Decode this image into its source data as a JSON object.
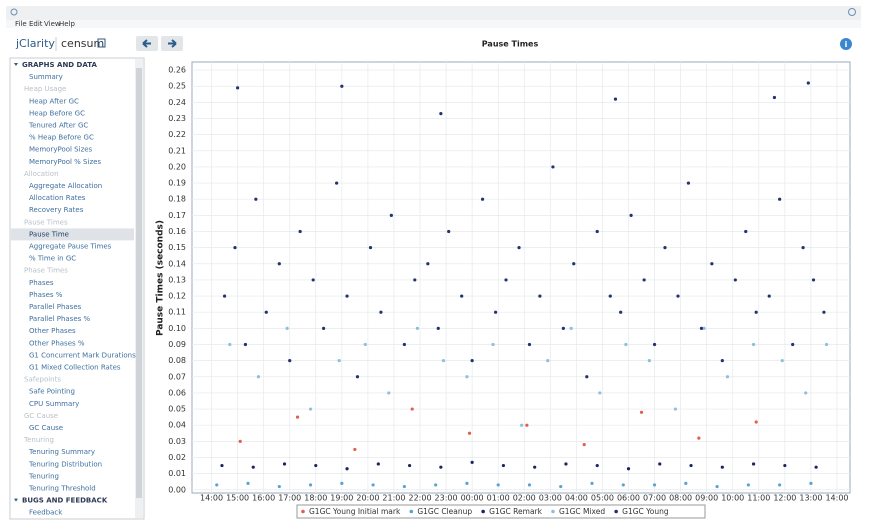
{
  "menu": [
    "File",
    "Edit",
    "View",
    "Help"
  ],
  "app": {
    "brand": "jClarity",
    "product": "censum"
  },
  "sidebar": [
    {
      "text": "GRAPHS AND DATA",
      "kind": "section"
    },
    {
      "text": "Summary",
      "kind": "item"
    },
    {
      "text": "Heap Usage",
      "kind": "header"
    },
    {
      "text": "Heap After GC",
      "kind": "item"
    },
    {
      "text": "Heap Before GC",
      "kind": "item"
    },
    {
      "text": "Tenured After GC",
      "kind": "item"
    },
    {
      "text": "% Heap Before GC",
      "kind": "item"
    },
    {
      "text": "MemoryPool Sizes",
      "kind": "item"
    },
    {
      "text": "MemoryPool % Sizes",
      "kind": "item"
    },
    {
      "text": "Allocation",
      "kind": "header"
    },
    {
      "text": "Aggregate Allocation",
      "kind": "item"
    },
    {
      "text": "Allocation Rates",
      "kind": "item"
    },
    {
      "text": "Recovery Rates",
      "kind": "item"
    },
    {
      "text": "Pause Times",
      "kind": "header"
    },
    {
      "text": "Pause Time",
      "kind": "selected"
    },
    {
      "text": "Aggregate Pause Times",
      "kind": "item"
    },
    {
      "text": "% Time in GC",
      "kind": "item"
    },
    {
      "text": "Phase Times",
      "kind": "header"
    },
    {
      "text": "Phases",
      "kind": "item"
    },
    {
      "text": "Phases %",
      "kind": "item"
    },
    {
      "text": "Parallel Phases",
      "kind": "item"
    },
    {
      "text": "Parallel Phases %",
      "kind": "item"
    },
    {
      "text": "Other Phases",
      "kind": "item"
    },
    {
      "text": "Other Phases %",
      "kind": "item"
    },
    {
      "text": "G1 Concurrent Mark Durations",
      "kind": "item"
    },
    {
      "text": "G1 Mixed Collection Rates",
      "kind": "item"
    },
    {
      "text": "Safepoints",
      "kind": "header"
    },
    {
      "text": "Safe Pointing",
      "kind": "item"
    },
    {
      "text": "CPU Summary",
      "kind": "item"
    },
    {
      "text": "GC Cause",
      "kind": "header"
    },
    {
      "text": "GC Cause",
      "kind": "item"
    },
    {
      "text": "Tenuring",
      "kind": "header"
    },
    {
      "text": "Tenuring Summary",
      "kind": "item"
    },
    {
      "text": "Tenuring Distribution",
      "kind": "item"
    },
    {
      "text": "Tenuring",
      "kind": "item"
    },
    {
      "text": "Tenuring Threshold",
      "kind": "item"
    },
    {
      "text": "BUGS AND FEEDBACK",
      "kind": "section"
    },
    {
      "text": "Feedback",
      "kind": "item"
    }
  ],
  "chart_data": {
    "type": "scatter",
    "title": "Pause Times",
    "y_label": "Pause Times (seconds)",
    "grid": true,
    "xlim": [
      -0.75,
      24.5
    ],
    "ylim": [
      -0.002,
      0.265
    ],
    "xticks": [
      {
        "value": 0,
        "label": "14:00"
      },
      {
        "value": 1,
        "label": "15:00"
      },
      {
        "value": 2,
        "label": "16:00"
      },
      {
        "value": 3,
        "label": "17:00"
      },
      {
        "value": 4,
        "label": "18:00"
      },
      {
        "value": 5,
        "label": "19:00"
      },
      {
        "value": 6,
        "label": "20:00"
      },
      {
        "value": 7,
        "label": "21:00"
      },
      {
        "value": 8,
        "label": "22:00"
      },
      {
        "value": 9,
        "label": "23:00"
      },
      {
        "value": 10,
        "label": "00:00"
      },
      {
        "value": 11,
        "label": "01:00"
      },
      {
        "value": 12,
        "label": "02:00"
      },
      {
        "value": 13,
        "label": "03:00"
      },
      {
        "value": 14,
        "label": "04:00"
      },
      {
        "value": 15,
        "label": "05:00"
      },
      {
        "value": 16,
        "label": "06:00"
      },
      {
        "value": 17,
        "label": "07:00"
      },
      {
        "value": 18,
        "label": "08:00"
      },
      {
        "value": 19,
        "label": "09:00"
      },
      {
        "value": 20,
        "label": "10:00"
      },
      {
        "value": 21,
        "label": "11:00"
      },
      {
        "value": 22,
        "label": "12:00"
      },
      {
        "value": 23,
        "label": "13:00"
      },
      {
        "value": 24,
        "label": "14:00"
      }
    ],
    "yticks": [
      {
        "value": 0,
        "label": "0.00"
      },
      {
        "value": 0.01,
        "label": "0.01"
      },
      {
        "value": 0.02,
        "label": "0.02"
      },
      {
        "value": 0.03,
        "label": "0.03"
      },
      {
        "value": 0.04,
        "label": "0.04"
      },
      {
        "value": 0.05,
        "label": "0.05"
      },
      {
        "value": 0.06,
        "label": "0.06"
      },
      {
        "value": 0.07,
        "label": "0.07"
      },
      {
        "value": 0.08,
        "label": "0.08"
      },
      {
        "value": 0.09,
        "label": "0.09"
      },
      {
        "value": 0.1,
        "label": "0.10"
      },
      {
        "value": 0.11,
        "label": "0.11"
      },
      {
        "value": 0.12,
        "label": "0.12"
      },
      {
        "value": 0.13,
        "label": "0.13"
      },
      {
        "value": 0.14,
        "label": "0.14"
      },
      {
        "value": 0.15,
        "label": "0.15"
      },
      {
        "value": 0.16,
        "label": "0.16"
      },
      {
        "value": 0.17,
        "label": "0.17"
      },
      {
        "value": 0.18,
        "label": "0.18"
      },
      {
        "value": 0.19,
        "label": "0.19"
      },
      {
        "value": 0.2,
        "label": "0.20"
      },
      {
        "value": 0.21,
        "label": "0.21"
      },
      {
        "value": 0.22,
        "label": "0.22"
      },
      {
        "value": 0.23,
        "label": "0.23"
      },
      {
        "value": 0.24,
        "label": "0.24"
      },
      {
        "value": 0.25,
        "label": "0.25"
      },
      {
        "value": 0.26,
        "label": "0.26"
      }
    ],
    "series": [
      {
        "name": "G1GC Young Initial mark",
        "color": "#e0604a",
        "x": [
          1.1,
          3.3,
          5.5,
          7.7,
          9.9,
          12.1,
          14.3,
          16.5,
          18.7,
          20.9
        ],
        "values": [
          0.03,
          0.045,
          0.025,
          0.05,
          0.035,
          0.04,
          0.028,
          0.048,
          0.032,
          0.042
        ]
      },
      {
        "name": "G1GC Cleanup",
        "color": "#5aa3d0",
        "x": [
          0.2,
          1.4,
          2.6,
          3.8,
          5.0,
          6.2,
          7.4,
          8.6,
          9.8,
          11.0,
          12.2,
          13.4,
          14.6,
          15.8,
          17.0,
          18.2,
          19.4,
          20.6,
          21.8,
          23.0
        ],
        "values": [
          0.003,
          0.004,
          0.002,
          0.003,
          0.004,
          0.003,
          0.002,
          0.003,
          0.004,
          0.003,
          0.003,
          0.002,
          0.004,
          0.003,
          0.003,
          0.004,
          0.002,
          0.003,
          0.003,
          0.004
        ]
      },
      {
        "name": "G1GC Remark",
        "color": "#1a2460",
        "x": [
          0.4,
          1.6,
          2.8,
          4.0,
          5.2,
          6.4,
          7.6,
          8.8,
          10.0,
          11.2,
          12.4,
          13.6,
          14.8,
          16.0,
          17.2,
          18.4,
          19.6,
          20.8,
          22.0,
          23.2
        ],
        "values": [
          0.015,
          0.014,
          0.016,
          0.015,
          0.013,
          0.016,
          0.015,
          0.014,
          0.017,
          0.015,
          0.014,
          0.016,
          0.015,
          0.013,
          0.016,
          0.015,
          0.014,
          0.016,
          0.015,
          0.014
        ]
      },
      {
        "name": "G1GC Mixed",
        "color": "#8cc0e0",
        "x": [
          0.7,
          1.8,
          2.9,
          3.8,
          4.9,
          5.9,
          6.8,
          7.9,
          8.9,
          9.8,
          10.8,
          11.9,
          12.9,
          13.8,
          14.9,
          15.9,
          16.8,
          17.8,
          18.9,
          19.8,
          20.8,
          21.9,
          22.8,
          23.6
        ],
        "values": [
          0.09,
          0.07,
          0.1,
          0.05,
          0.08,
          0.09,
          0.06,
          0.1,
          0.08,
          0.07,
          0.09,
          0.04,
          0.08,
          0.1,
          0.06,
          0.09,
          0.08,
          0.05,
          0.1,
          0.07,
          0.09,
          0.08,
          0.06,
          0.09
        ]
      },
      {
        "name": "G1GC Young",
        "color": "#26326e",
        "x": [
          0.5,
          0.9,
          1.3,
          1.7,
          2.1,
          2.6,
          3.0,
          3.4,
          3.9,
          4.3,
          4.8,
          5.2,
          5.6,
          6.1,
          6.5,
          6.9,
          7.4,
          7.8,
          8.3,
          8.7,
          9.1,
          9.6,
          10.0,
          10.4,
          10.9,
          11.3,
          11.8,
          12.2,
          12.6,
          13.1,
          13.5,
          13.9,
          14.4,
          14.8,
          15.3,
          15.7,
          16.1,
          16.6,
          17.0,
          17.4,
          17.9,
          18.3,
          18.8,
          19.2,
          19.6,
          20.1,
          20.5,
          20.9,
          21.4,
          21.8,
          22.3,
          22.7,
          23.1,
          23.5,
          1.0,
          5.0,
          22.9,
          21.6,
          15.5,
          8.8
        ],
        "values": [
          0.12,
          0.15,
          0.09,
          0.18,
          0.11,
          0.14,
          0.08,
          0.16,
          0.13,
          0.1,
          0.19,
          0.12,
          0.07,
          0.15,
          0.11,
          0.17,
          0.09,
          0.13,
          0.14,
          0.1,
          0.16,
          0.12,
          0.08,
          0.18,
          0.11,
          0.13,
          0.15,
          0.09,
          0.12,
          0.2,
          0.1,
          0.14,
          0.07,
          0.16,
          0.12,
          0.11,
          0.17,
          0.13,
          0.09,
          0.15,
          0.12,
          0.19,
          0.1,
          0.14,
          0.08,
          0.13,
          0.16,
          0.11,
          0.12,
          0.18,
          0.09,
          0.15,
          0.13,
          0.11,
          0.249,
          0.25,
          0.252,
          0.243,
          0.242,
          0.233
        ]
      }
    ]
  }
}
